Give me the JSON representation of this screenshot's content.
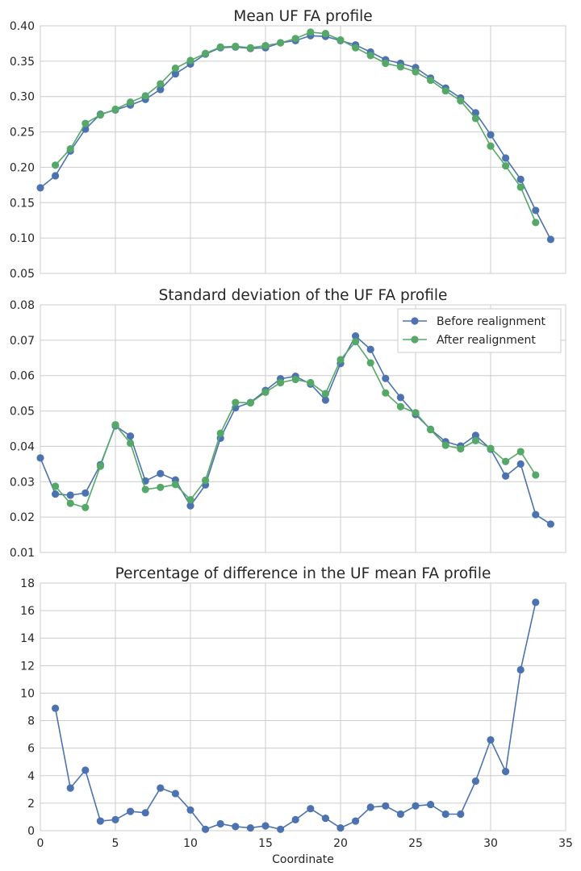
{
  "colors": {
    "before": "#4c72b0",
    "after": "#55a868"
  },
  "chart_data": [
    {
      "type": "line",
      "title": "Mean UF FA profile",
      "xlabel": "",
      "ylabel": "",
      "xlim": [
        0,
        35
      ],
      "ylim": [
        0.05,
        0.4
      ],
      "xticks": [
        "0",
        "5",
        "10",
        "15",
        "20",
        "25",
        "30",
        "35"
      ],
      "yticks": [
        "0.05",
        "0.10",
        "0.15",
        "0.20",
        "0.25",
        "0.30",
        "0.35",
        "0.40"
      ],
      "grid": true,
      "legend": false,
      "series": [
        {
          "name": "Before realignment",
          "x": [
            0,
            1,
            2,
            3,
            4,
            5,
            6,
            7,
            8,
            9,
            10,
            11,
            12,
            13,
            14,
            15,
            16,
            17,
            18,
            19,
            20,
            21,
            22,
            23,
            24,
            25,
            26,
            27,
            28,
            29,
            30,
            31,
            32,
            33,
            34
          ],
          "values": [
            0.171,
            0.188,
            0.223,
            0.254,
            0.275,
            0.281,
            0.288,
            0.296,
            0.31,
            0.332,
            0.346,
            0.36,
            0.369,
            0.37,
            0.368,
            0.369,
            0.376,
            0.379,
            0.386,
            0.385,
            0.379,
            0.373,
            0.363,
            0.352,
            0.347,
            0.341,
            0.326,
            0.312,
            0.298,
            0.277,
            0.246,
            0.213,
            0.183,
            0.139,
            0.098
          ]
        },
        {
          "name": "After realignment",
          "x": [
            1,
            2,
            3,
            4,
            5,
            6,
            7,
            8,
            9,
            10,
            11,
            12,
            13,
            14,
            15,
            16,
            17,
            18,
            19,
            20,
            21,
            22,
            23,
            24,
            25,
            26,
            27,
            28,
            29,
            30,
            31,
            32,
            33
          ],
          "values": [
            0.203,
            0.226,
            0.262,
            0.274,
            0.282,
            0.292,
            0.301,
            0.318,
            0.34,
            0.351,
            0.361,
            0.37,
            0.371,
            0.369,
            0.372,
            0.376,
            0.382,
            0.391,
            0.389,
            0.38,
            0.369,
            0.358,
            0.347,
            0.342,
            0.335,
            0.323,
            0.308,
            0.294,
            0.269,
            0.23,
            0.202,
            0.172,
            0.122
          ]
        }
      ]
    },
    {
      "type": "line",
      "title": "Standard deviation of the UF FA profile",
      "xlabel": "",
      "ylabel": "",
      "xlim": [
        0,
        35
      ],
      "ylim": [
        0.01,
        0.08
      ],
      "xticks": [
        "0",
        "5",
        "10",
        "15",
        "20",
        "25",
        "30",
        "35"
      ],
      "yticks": [
        "0.01",
        "0.02",
        "0.03",
        "0.04",
        "0.05",
        "0.06",
        "0.07",
        "0.08"
      ],
      "grid": true,
      "legend": true,
      "legend_position": "top-right",
      "series": [
        {
          "name": "Before realignment",
          "x": [
            0,
            1,
            2,
            3,
            4,
            5,
            6,
            7,
            8,
            9,
            10,
            11,
            12,
            13,
            14,
            15,
            16,
            17,
            18,
            19,
            20,
            21,
            22,
            23,
            24,
            25,
            26,
            27,
            28,
            29,
            30,
            31,
            32,
            33,
            34
          ],
          "values": [
            0.0367,
            0.0265,
            0.0262,
            0.0268,
            0.0348,
            0.0458,
            0.0429,
            0.0302,
            0.0323,
            0.0305,
            0.0232,
            0.0291,
            0.0423,
            0.0509,
            0.0524,
            0.0558,
            0.0591,
            0.0598,
            0.0576,
            0.0531,
            0.0634,
            0.0712,
            0.0674,
            0.0592,
            0.0538,
            0.049,
            0.0448,
            0.0413,
            0.0401,
            0.0431,
            0.0392,
            0.0316,
            0.035,
            0.0207,
            0.018
          ]
        },
        {
          "name": "After realignment",
          "x": [
            1,
            2,
            3,
            4,
            5,
            6,
            7,
            8,
            9,
            10,
            11,
            12,
            13,
            14,
            15,
            16,
            17,
            18,
            19,
            20,
            21,
            22,
            23,
            24,
            25,
            26,
            27,
            28,
            29,
            30,
            31,
            32,
            33
          ],
          "values": [
            0.0287,
            0.0239,
            0.0227,
            0.0344,
            0.0461,
            0.0409,
            0.0278,
            0.0284,
            0.0292,
            0.0249,
            0.0304,
            0.0437,
            0.0524,
            0.0523,
            0.0553,
            0.058,
            0.0589,
            0.058,
            0.0549,
            0.0645,
            0.0696,
            0.0636,
            0.0551,
            0.0512,
            0.0495,
            0.0447,
            0.0403,
            0.0393,
            0.0416,
            0.0394,
            0.0357,
            0.0385,
            0.0319
          ]
        }
      ]
    },
    {
      "type": "line",
      "title": "Percentage of difference in the UF mean FA profile",
      "xlabel": "Coordinate",
      "ylabel": "",
      "xlim": [
        0,
        35
      ],
      "ylim": [
        0,
        18
      ],
      "xticks": [
        "0",
        "5",
        "10",
        "15",
        "20",
        "25",
        "30",
        "35"
      ],
      "yticks": [
        "0",
        "2",
        "4",
        "6",
        "8",
        "10",
        "12",
        "14",
        "16",
        "18"
      ],
      "grid": true,
      "legend": false,
      "series": [
        {
          "name": "Percentage of difference",
          "x": [
            1,
            2,
            3,
            4,
            5,
            6,
            7,
            8,
            9,
            10,
            11,
            12,
            13,
            14,
            15,
            16,
            17,
            18,
            19,
            20,
            21,
            22,
            23,
            24,
            25,
            26,
            27,
            28,
            29,
            30,
            31,
            32,
            33
          ],
          "values": [
            8.9,
            3.1,
            4.4,
            0.7,
            0.8,
            1.4,
            1.3,
            3.1,
            2.7,
            1.5,
            0.1,
            0.5,
            0.3,
            0.2,
            0.35,
            0.1,
            0.8,
            1.6,
            0.9,
            0.2,
            0.7,
            1.7,
            1.8,
            1.2,
            1.8,
            1.9,
            1.2,
            1.2,
            3.6,
            6.6,
            4.3,
            11.7,
            16.6
          ]
        }
      ]
    }
  ]
}
